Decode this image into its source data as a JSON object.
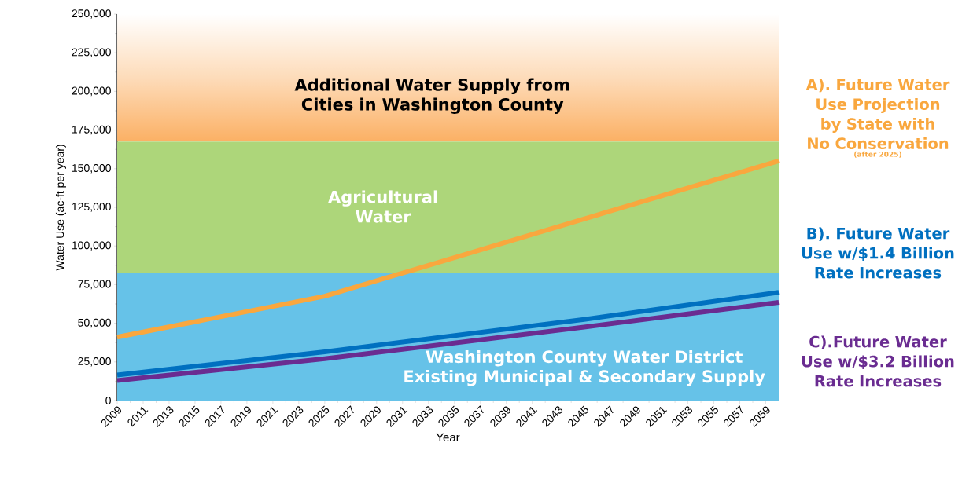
{
  "chart_data": {
    "type": "line",
    "xlabel": "Year",
    "ylabel": "Water Use (ac-ft per year)",
    "xlim": [
      2009,
      2060
    ],
    "xticks": [
      2009,
      2011,
      2013,
      2015,
      2017,
      2019,
      2021,
      2023,
      2025,
      2027,
      2029,
      2031,
      2033,
      2035,
      2037,
      2039,
      2041,
      2043,
      2045,
      2047,
      2049,
      2051,
      2053,
      2055,
      2057,
      2059
    ],
    "ylim": [
      0,
      250000
    ],
    "yticks": [
      {
        "value": 0,
        "label": "0"
      },
      {
        "value": 25000,
        "label": "25,000"
      },
      {
        "value": 50000,
        "label": "50,000"
      },
      {
        "value": 75000,
        "label": "75,000"
      },
      {
        "value": 100000,
        "label": "100,000"
      },
      {
        "value": 125000,
        "label": "125,000"
      },
      {
        "value": 150000,
        "label": "150,000"
      },
      {
        "value": 175000,
        "label": "175,000"
      },
      {
        "value": 200000,
        "label": "200,000"
      },
      {
        "value": 225000,
        "label": "225,000"
      },
      {
        "value": 250000,
        "label": "250,000"
      }
    ],
    "series": [
      {
        "name": "A). Future Water Use Projection by State with No Conservation",
        "color": "#f9a73e",
        "x": [
          2009,
          2025,
          2060
        ],
        "values": [
          41000,
          67500,
          155000
        ]
      },
      {
        "name": "B). Future Water Use w/$1.4 Billion Rate Increases",
        "color": "#0070c0",
        "x": [
          2009,
          2025,
          2045,
          2060
        ],
        "values": [
          16500,
          31500,
          52500,
          70000
        ]
      },
      {
        "name": "C).Future Water Use w/$3.2 Billion Rate Increases",
        "color": "#6a2c91",
        "x": [
          2009,
          2025,
          2045,
          2060
        ],
        "values": [
          13000,
          27000,
          47500,
          63500
        ]
      }
    ],
    "bands": [
      {
        "axis": "y",
        "from": 0,
        "to": 82500,
        "label": "Washington County Water District Existing Municipal & Secondary Supply",
        "color": "#66c2e8"
      },
      {
        "axis": "y",
        "from": 82500,
        "to": 167500,
        "label": "Agricultural Water",
        "color": "#add67a"
      },
      {
        "axis": "y",
        "from": 167500,
        "to": 250000,
        "label": "Additional Water Supply from Cities in Washington County",
        "color": "#fbb064"
      }
    ],
    "annotations": [
      "(after 2025)"
    ],
    "marker": "none",
    "line_style": "solid",
    "grid": false
  }
}
